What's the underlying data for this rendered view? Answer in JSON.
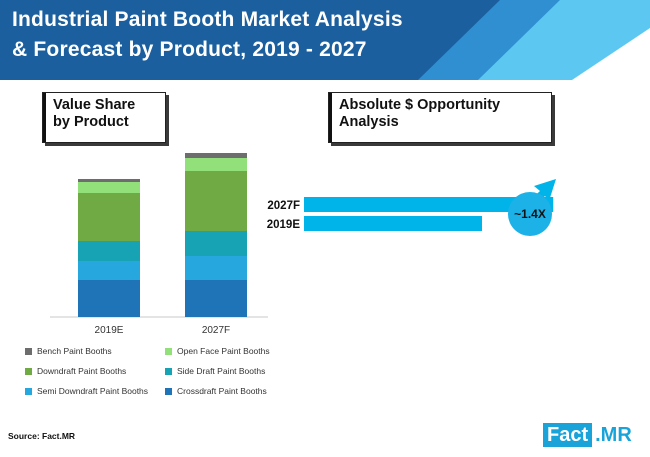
{
  "title": {
    "line1": "Industrial Paint Booth Market Analysis",
    "line2": "& Forecast by Product, 2019 - 2027"
  },
  "left_panel": {
    "heading_line1": "Value Share",
    "heading_line2": "by Product"
  },
  "right_panel": {
    "heading_line1": "Absolute $ Opportunity",
    "heading_line2": "Analysis"
  },
  "colors": {
    "banner_dark": "#1b5f9e",
    "banner_light": "#5cc8f2",
    "bench": "#6d6d6d",
    "open_face": "#92e07a",
    "downdraft": "#6faa45",
    "side_draft": "#17a3b3",
    "semi_downdraft": "#26a7de",
    "crossdraft": "#1f74b8",
    "opportunity_bar": "#00b4ea"
  },
  "chart_data": [
    {
      "type": "bar",
      "stacked": true,
      "categories": [
        "2019E",
        "2027F"
      ],
      "series": [
        {
          "name": "Crossdraft Paint Booths",
          "values": [
            37,
            37
          ]
        },
        {
          "name": "Semi Downdraft Paint Booths",
          "values": [
            19,
            24
          ]
        },
        {
          "name": "Side Draft Paint Booths",
          "values": [
            20,
            25
          ]
        },
        {
          "name": "Downdraft Paint Booths",
          "values": [
            48,
            60
          ]
        },
        {
          "name": "Open Face Paint Booths",
          "values": [
            11,
            13
          ]
        },
        {
          "name": "Bench Paint Booths",
          "values": [
            3,
            5
          ]
        }
      ],
      "legend_placement": "bottom"
    },
    {
      "type": "bar",
      "orientation": "horizontal",
      "categories": [
        "2027F",
        "2019E"
      ],
      "values": [
        1.4,
        1.0
      ],
      "annotation": "~1.4X"
    }
  ],
  "source": "Source: Fact.MR",
  "logo": {
    "part1": "Fact",
    "part2": ".MR"
  }
}
